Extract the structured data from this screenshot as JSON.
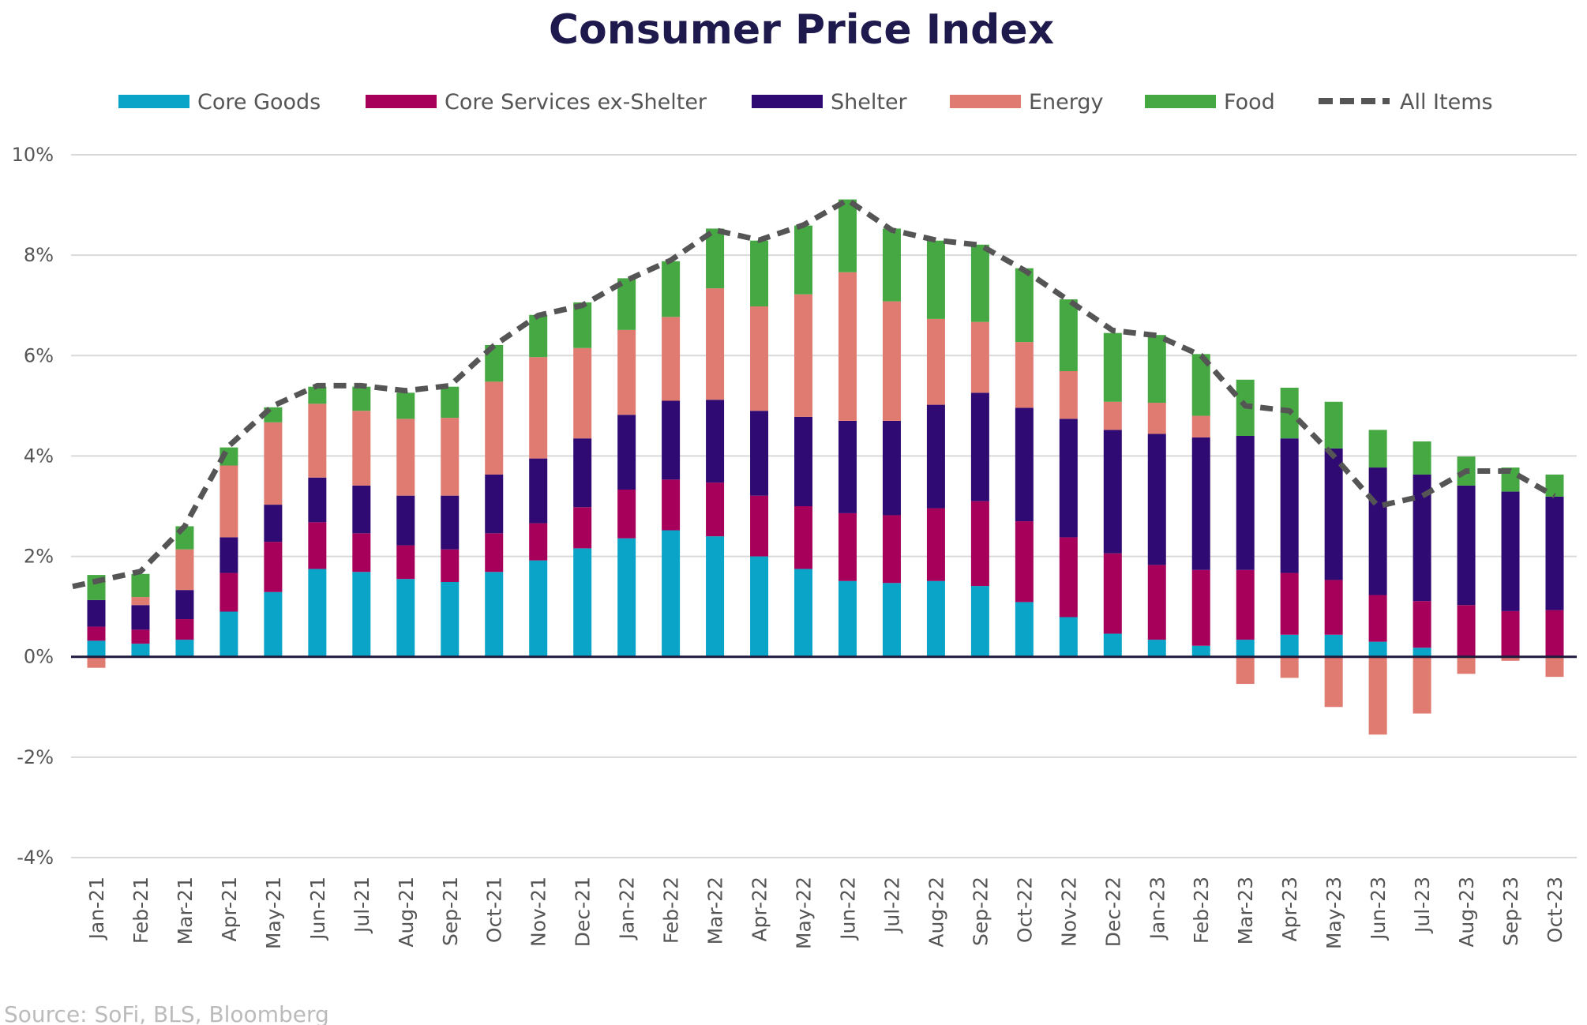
{
  "chart_data": {
    "type": "bar",
    "stacked": true,
    "title": "Consumer Price Index",
    "source": "Source: SoFi, BLS, Bloomberg",
    "ylim": [
      -4,
      10
    ],
    "yticks": [
      10,
      8,
      6,
      4,
      2,
      0,
      -2,
      -4
    ],
    "ytick_labels": [
      "10%",
      "8%",
      "6%",
      "4%",
      "2%",
      "0%",
      "-2%",
      "-4%"
    ],
    "grid": true,
    "legend_position": "top",
    "categories": [
      "Jan-21",
      "Feb-21",
      "Mar-21",
      "Apr-21",
      "May-21",
      "Jun-21",
      "Jul-21",
      "Aug-21",
      "Sep-21",
      "Oct-21",
      "Nov-21",
      "Dec-21",
      "Jan-22",
      "Feb-22",
      "Mar-22",
      "Apr-22",
      "May-22",
      "Jun-22",
      "Jul-22",
      "Aug-22",
      "Sep-22",
      "Oct-22",
      "Nov-22",
      "Dec-22",
      "Jan-23",
      "Feb-23",
      "Mar-23",
      "Apr-23",
      "May-23",
      "Jun-23",
      "Jul-23",
      "Aug-23",
      "Sep-23",
      "Oct-23"
    ],
    "series": [
      {
        "name": "Core Goods",
        "color": "#0aa4c8",
        "values": [
          0.32,
          0.26,
          0.34,
          0.9,
          1.29,
          1.75,
          1.69,
          1.55,
          1.49,
          1.69,
          1.92,
          2.16,
          2.36,
          2.52,
          2.4,
          2.0,
          1.75,
          1.51,
          1.47,
          1.51,
          1.41,
          1.09,
          0.79,
          0.46,
          0.34,
          0.22,
          0.34,
          0.44,
          0.44,
          0.3,
          0.18,
          0.0,
          0.0,
          0.0
        ]
      },
      {
        "name": "Core Services ex-Shelter",
        "color": "#a6005a",
        "values": [
          0.28,
          0.28,
          0.41,
          0.77,
          1.0,
          0.93,
          0.77,
          0.67,
          0.65,
          0.77,
          0.74,
          0.82,
          0.97,
          1.01,
          1.07,
          1.21,
          1.25,
          1.35,
          1.35,
          1.45,
          1.69,
          1.61,
          1.59,
          1.6,
          1.49,
          1.51,
          1.39,
          1.23,
          1.09,
          0.93,
          0.93,
          1.03,
          0.91,
          0.93
        ]
      },
      {
        "name": "Shelter",
        "color": "#2e0a72",
        "values": [
          0.53,
          0.49,
          0.58,
          0.71,
          0.74,
          0.89,
          0.95,
          0.99,
          1.07,
          1.17,
          1.29,
          1.37,
          1.49,
          1.57,
          1.65,
          1.69,
          1.78,
          1.84,
          1.88,
          2.06,
          2.16,
          2.26,
          2.36,
          2.46,
          2.61,
          2.64,
          2.67,
          2.68,
          2.62,
          2.54,
          2.52,
          2.38,
          2.38,
          2.26
        ]
      },
      {
        "name": "Energy",
        "color": "#e07b72",
        "values": [
          -0.22,
          0.16,
          0.81,
          1.43,
          1.64,
          1.47,
          1.49,
          1.53,
          1.55,
          1.85,
          2.02,
          1.8,
          1.69,
          1.67,
          2.22,
          2.08,
          2.44,
          2.96,
          2.38,
          1.71,
          1.41,
          1.31,
          0.95,
          0.56,
          0.62,
          0.43,
          -0.54,
          -0.42,
          -1.0,
          -1.55,
          -1.13,
          -0.34,
          -0.08,
          -0.4
        ]
      },
      {
        "name": "Food",
        "color": "#46a843",
        "values": [
          0.5,
          0.46,
          0.46,
          0.36,
          0.3,
          0.34,
          0.48,
          0.52,
          0.62,
          0.73,
          0.84,
          0.91,
          1.03,
          1.11,
          1.19,
          1.31,
          1.37,
          1.45,
          1.45,
          1.56,
          1.54,
          1.47,
          1.43,
          1.37,
          1.35,
          1.23,
          1.12,
          1.01,
          0.93,
          0.75,
          0.66,
          0.58,
          0.48,
          0.44
        ]
      }
    ],
    "line": {
      "name": "All Items",
      "color": "#555555",
      "style": "dashed",
      "values": [
        1.4,
        1.7,
        2.6,
        4.2,
        5.0,
        5.4,
        5.4,
        5.3,
        5.4,
        6.2,
        6.8,
        7.0,
        7.5,
        7.9,
        8.5,
        8.3,
        8.6,
        9.1,
        8.5,
        8.3,
        8.2,
        7.7,
        7.1,
        6.5,
        6.4,
        6.0,
        5.0,
        4.9,
        4.0,
        3.0,
        3.2,
        3.7,
        3.7,
        3.2
      ]
    }
  }
}
